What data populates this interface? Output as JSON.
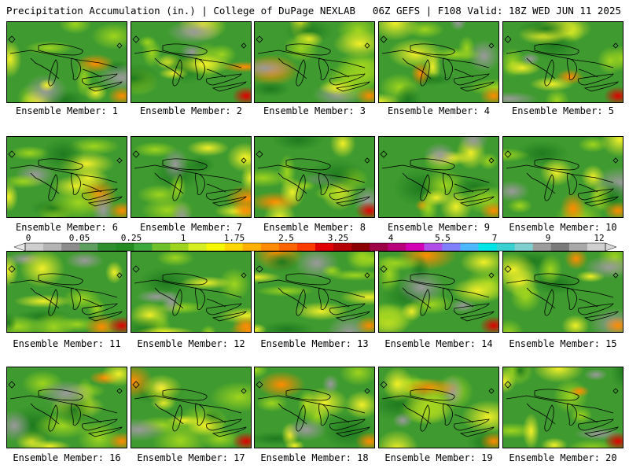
{
  "header": {
    "title_left": "Precipitation Accumulation (in.) | College of DuPage NEXLAB",
    "title_right": "06Z GEFS | F108 Valid: 18Z WED JUN 11 2025"
  },
  "panels": [
    {
      "label": "Ensemble Member: 1"
    },
    {
      "label": "Ensemble Member: 2"
    },
    {
      "label": "Ensemble Member: 3"
    },
    {
      "label": "Ensemble Member: 4"
    },
    {
      "label": "Ensemble Member: 5"
    },
    {
      "label": "Ensemble Member: 6"
    },
    {
      "label": "Ensemble Member: 7"
    },
    {
      "label": "Ensemble Member: 8"
    },
    {
      "label": "Ensemble Member: 9"
    },
    {
      "label": "Ensemble Member: 10"
    },
    {
      "label": "Ensemble Member: 11"
    },
    {
      "label": "Ensemble Member: 12"
    },
    {
      "label": "Ensemble Member: 13"
    },
    {
      "label": "Ensemble Member: 14"
    },
    {
      "label": "Ensemble Member: 15"
    },
    {
      "label": "Ensemble Member: 16"
    },
    {
      "label": "Ensemble Member: 17"
    },
    {
      "label": "Ensemble Member: 18"
    },
    {
      "label": "Ensemble Member: 19"
    },
    {
      "label": "Ensemble Member: 20"
    }
  ],
  "colorbar": {
    "tick_labels": [
      "0",
      "0.05",
      "0.25",
      "1",
      "1.75",
      "2.5",
      "3.25",
      "4",
      "5.5",
      "7",
      "9",
      "12"
    ],
    "colors": [
      "#cfcfcf",
      "#b4b4b4",
      "#8c8c8c",
      "#5e9e5e",
      "#2f8f2f",
      "#228b22",
      "#3da83d",
      "#6fc02c",
      "#9ed41e",
      "#d6ef23",
      "#f7f700",
      "#ffd700",
      "#ffb000",
      "#ff8c00",
      "#ff6400",
      "#ff3c00",
      "#e00000",
      "#b40000",
      "#8b0000",
      "#9e0048",
      "#b8007a",
      "#d200b4",
      "#b04fe8",
      "#8080ff",
      "#4db8ff",
      "#00e5e5",
      "#38d0d0",
      "#7fcfcf",
      "#9c9c9c",
      "#7a7a7a",
      "#a8a8a8",
      "#d0d0d0"
    ]
  }
}
